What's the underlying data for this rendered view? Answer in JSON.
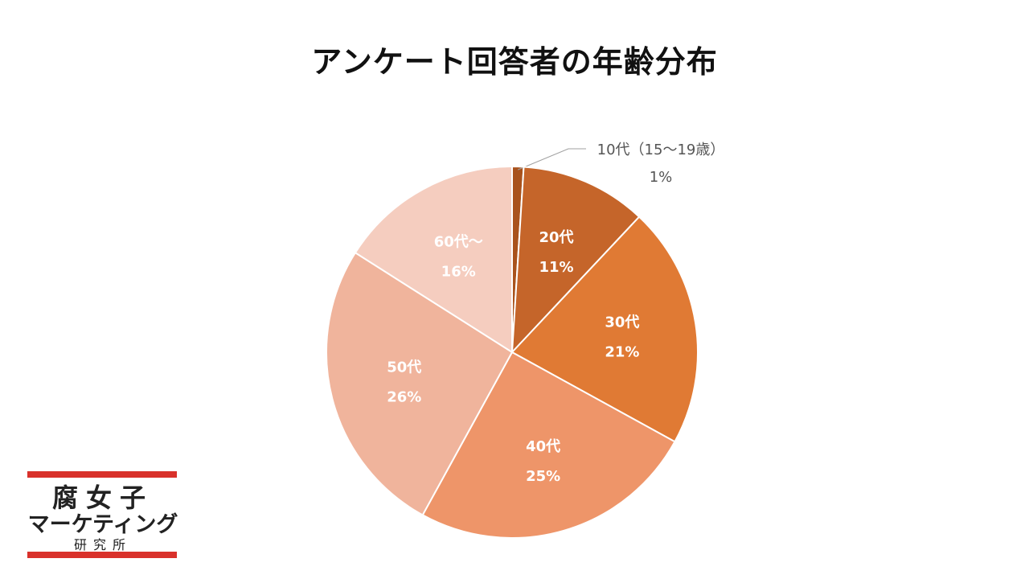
{
  "chart_data": {
    "type": "pie",
    "title": "アンケート回答者の年齢分布",
    "slices": [
      {
        "label": "10代（15～19歳）",
        "value": 1,
        "display": "1%",
        "color": "#a9521c"
      },
      {
        "label": "20代",
        "value": 11,
        "display": "11%",
        "color": "#c5652a"
      },
      {
        "label": "30代",
        "value": 21,
        "display": "21%",
        "color": "#e07a34"
      },
      {
        "label": "40代",
        "value": 25,
        "display": "25%",
        "color": "#ee9569"
      },
      {
        "label": "50代",
        "value": 26,
        "display": "26%",
        "color": "#f0b49c"
      },
      {
        "label": "60代～",
        "value": 16,
        "display": "16%",
        "color": "#f5cdbf"
      }
    ]
  },
  "logo": {
    "line1": "腐女子",
    "line2": "マーケティング",
    "line3": "研究所"
  }
}
